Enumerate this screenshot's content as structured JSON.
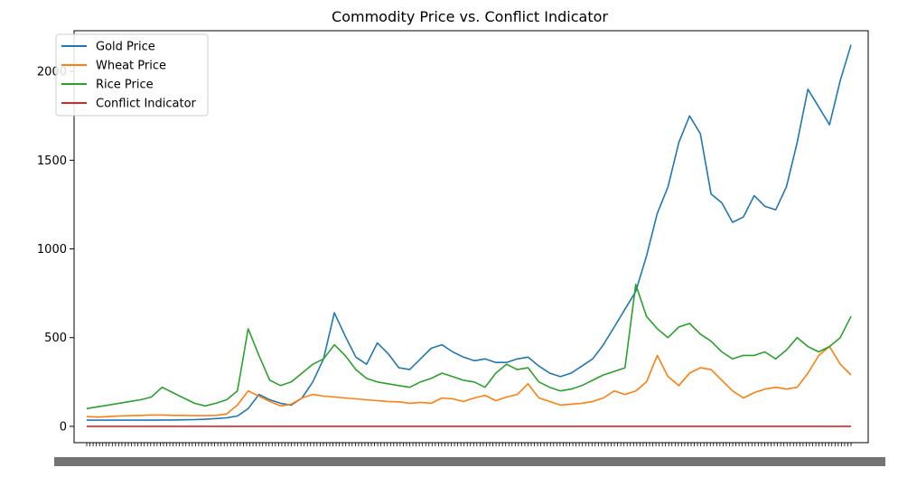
{
  "chart_data": {
    "type": "line",
    "title": "Commodity Price vs. Conflict Indicator",
    "xlabel": "",
    "ylabel": "",
    "ylim": [
      -92,
      2230
    ],
    "yticks": [
      0,
      500,
      1000,
      1500,
      2000
    ],
    "x_tick_labels_note": "dense overlapping date ticks",
    "legend_position": "top-left",
    "grid": false,
    "n_points": 72,
    "series": [
      {
        "name": "Gold Price",
        "color": "#1f77b4",
        "values": [
          35,
          35,
          35,
          35,
          35,
          35,
          35,
          36,
          36,
          37,
          38,
          40,
          44,
          48,
          58,
          100,
          180,
          150,
          130,
          120,
          160,
          250,
          380,
          640,
          510,
          390,
          350,
          470,
          410,
          330,
          320,
          380,
          440,
          460,
          420,
          390,
          370,
          380,
          360,
          360,
          380,
          390,
          340,
          300,
          280,
          300,
          340,
          380,
          460,
          560,
          660,
          760,
          960,
          1200,
          1350,
          1600,
          1750,
          1650,
          1310,
          1260,
          1150,
          1180,
          1300,
          1240,
          1220,
          1350,
          1600,
          1900,
          1800,
          1700,
          1950,
          2150
        ]
      },
      {
        "name": "Wheat Price",
        "color": "#ff7f0e",
        "values": [
          55,
          52,
          55,
          58,
          60,
          62,
          64,
          64,
          62,
          62,
          60,
          60,
          62,
          70,
          120,
          200,
          170,
          140,
          115,
          125,
          160,
          180,
          170,
          165,
          160,
          155,
          150,
          145,
          140,
          138,
          130,
          135,
          130,
          160,
          155,
          140,
          160,
          175,
          145,
          165,
          180,
          240,
          160,
          140,
          120,
          125,
          130,
          140,
          160,
          200,
          180,
          200,
          250,
          400,
          280,
          230,
          300,
          330,
          320,
          260,
          200,
          160,
          190,
          210,
          220,
          210,
          220,
          300,
          400,
          450,
          350,
          290
        ]
      },
      {
        "name": "Rice Price",
        "color": "#2ca02c",
        "values": [
          100,
          110,
          120,
          130,
          140,
          150,
          165,
          220,
          190,
          160,
          130,
          115,
          130,
          150,
          200,
          550,
          400,
          260,
          230,
          250,
          300,
          350,
          380,
          460,
          400,
          320,
          270,
          250,
          240,
          230,
          220,
          250,
          270,
          300,
          280,
          260,
          250,
          220,
          300,
          350,
          320,
          330,
          250,
          220,
          200,
          210,
          230,
          260,
          290,
          310,
          330,
          800,
          620,
          550,
          500,
          560,
          580,
          520,
          480,
          420,
          380,
          400,
          400,
          420,
          380,
          430,
          500,
          450,
          420,
          450,
          500,
          620
        ]
      },
      {
        "name": "Conflict Indicator",
        "color": "#d62728",
        "values": [
          0,
          0,
          0,
          0,
          0,
          0,
          0,
          0,
          0,
          0,
          0,
          0,
          0,
          0,
          0,
          0,
          0,
          0,
          0,
          0,
          0,
          0,
          0,
          0,
          0,
          0,
          0,
          0,
          0,
          0,
          0,
          0,
          0,
          0,
          0,
          0,
          0,
          0,
          0,
          0,
          0,
          0,
          0,
          0,
          0,
          0,
          0,
          0,
          0,
          0,
          0,
          0,
          0,
          0,
          0,
          0,
          0,
          0,
          0,
          0,
          0,
          0,
          0,
          0,
          0,
          0,
          0,
          0,
          0,
          0,
          0,
          0
        ]
      }
    ]
  }
}
